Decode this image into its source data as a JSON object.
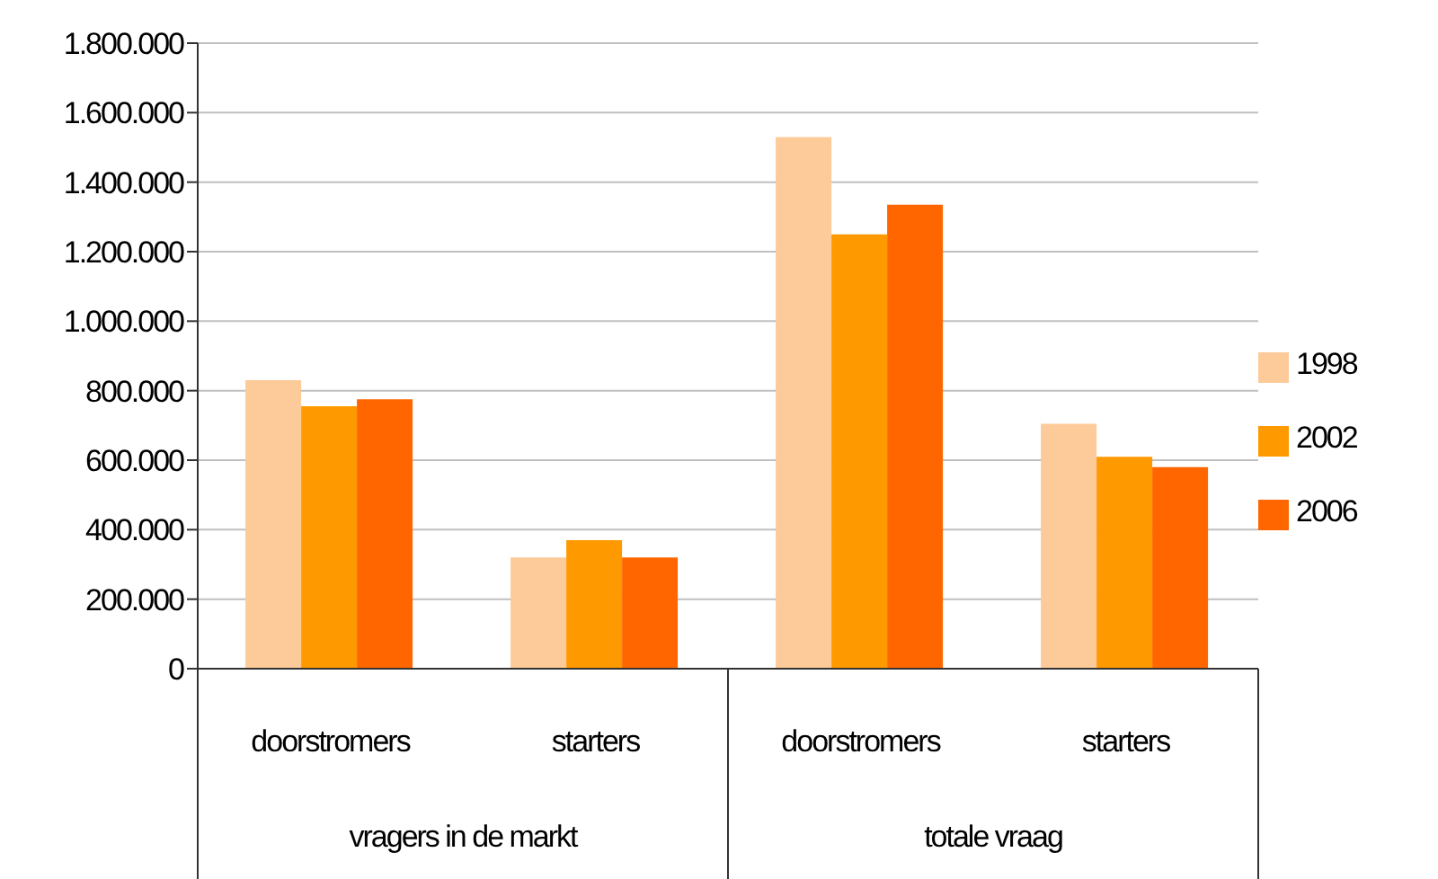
{
  "chart_data": {
    "type": "bar",
    "categories": [
      "doorstromers",
      "starters",
      "doorstromers",
      "starters"
    ],
    "series": [
      {
        "name": "1998",
        "color": "#fdca99",
        "values": [
          830000,
          320000,
          1530000,
          705000
        ]
      },
      {
        "name": "2002",
        "color": "#ff9900",
        "values": [
          755000,
          370000,
          1250000,
          610000
        ]
      },
      {
        "name": "2006",
        "color": "#ff6600",
        "values": [
          775000,
          320000,
          1335000,
          580000
        ]
      }
    ],
    "annotations": [
      "vragers in de markt",
      "totale vraag"
    ],
    "ylim": [
      0,
      1800000
    ],
    "yticks": [
      0,
      {
        "value": 200000,
        "label": "200.000"
      },
      {
        "value": 400000,
        "label": "400.000"
      },
      {
        "value": 600000,
        "label": "600.000"
      },
      {
        "value": 800000,
        "label": "800.000"
      },
      {
        "value": 1000000,
        "label": "1.000.000"
      },
      {
        "value": 1200000,
        "label": "1.200.000"
      },
      {
        "value": 1400000,
        "label": "1.400.000"
      },
      {
        "value": 1600000,
        "label": "1.600.000"
      },
      {
        "value": 1800000,
        "label": "1.800.000"
      }
    ],
    "grid": "y",
    "legend": "right"
  }
}
